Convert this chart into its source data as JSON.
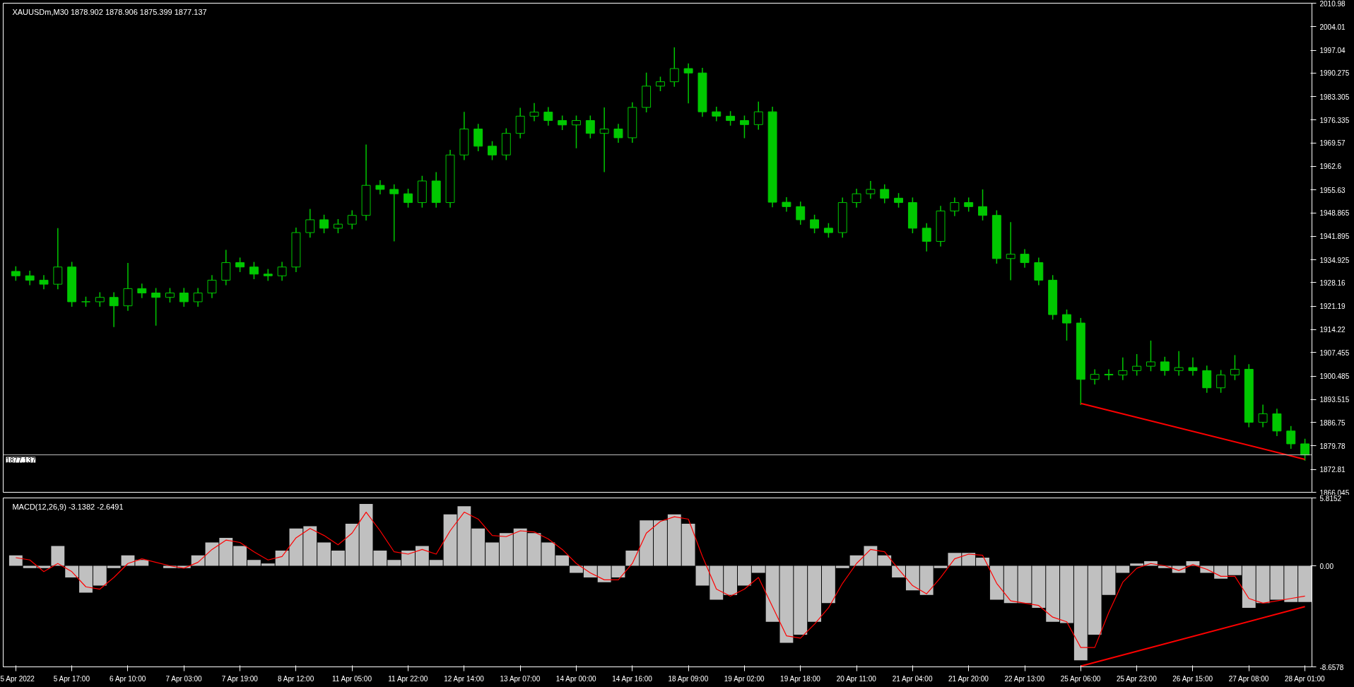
{
  "chart_data": [
    {
      "type": "candlestick",
      "title": "XAUUSDm,M30  1878.902 1878.906 1875.399 1877.137",
      "color": "#00c800",
      "categories": [
        null,
        null,
        null,
        null,
        null,
        null,
        null,
        null,
        null,
        null,
        null,
        null,
        null,
        null,
        null,
        null,
        null,
        null,
        null,
        null,
        null,
        null,
        null,
        null,
        null,
        null,
        null,
        null,
        null,
        null,
        null,
        null,
        null,
        null,
        null,
        null,
        null,
        null,
        null,
        null,
        null,
        null,
        null,
        null,
        null,
        null,
        null,
        null,
        null,
        null,
        null,
        null,
        null,
        null,
        null,
        null,
        null,
        null,
        null,
        null,
        null,
        null,
        null,
        null,
        null,
        null,
        null,
        null,
        null,
        null,
        null,
        null,
        null,
        null,
        null,
        null,
        null,
        null,
        null,
        null,
        null,
        null,
        null,
        null,
        null,
        null,
        null,
        null,
        null,
        null,
        null,
        null,
        null
      ],
      "ohlc": [
        [
          1931.5,
          1933.0,
          1928.7,
          1930.2
        ],
        [
          1930.2,
          1931.7,
          1927.4,
          1928.9
        ],
        [
          1928.9,
          1930.4,
          1926.2,
          1927.7
        ],
        [
          1927.7,
          1944.3,
          1926.2,
          1932.8
        ],
        [
          1932.8,
          1934.3,
          1921.0,
          1922.5
        ],
        [
          1922.5,
          1924.0,
          1921.0,
          1922.5
        ],
        [
          1922.5,
          1925.3,
          1921.0,
          1923.8
        ],
        [
          1923.8,
          1925.3,
          1915.0,
          1921.3
        ],
        [
          1921.3,
          1934.0,
          1919.8,
          1926.4
        ],
        [
          1926.4,
          1927.9,
          1923.6,
          1925.1
        ],
        [
          1925.1,
          1926.6,
          1915.4,
          1923.8
        ],
        [
          1923.8,
          1926.6,
          1922.3,
          1925.1
        ],
        [
          1925.1,
          1926.6,
          1921.0,
          1922.5
        ],
        [
          1922.5,
          1926.6,
          1921.0,
          1925.1
        ],
        [
          1925.1,
          1930.4,
          1923.6,
          1928.9
        ],
        [
          1928.9,
          1937.9,
          1927.4,
          1934.1
        ],
        [
          1934.1,
          1935.6,
          1931.3,
          1932.8
        ],
        [
          1932.8,
          1934.3,
          1929.2,
          1930.7
        ],
        [
          1930.7,
          1932.2,
          1928.7,
          1930.2
        ],
        [
          1930.2,
          1934.3,
          1928.7,
          1932.8
        ],
        [
          1932.8,
          1944.5,
          1931.3,
          1943.0
        ],
        [
          1943.0,
          1950.0,
          1941.5,
          1946.8
        ],
        [
          1946.8,
          1948.3,
          1942.8,
          1944.3
        ],
        [
          1944.3,
          1947.0,
          1942.8,
          1945.5
        ],
        [
          1945.5,
          1949.6,
          1944.0,
          1948.1
        ],
        [
          1948.1,
          1969.1,
          1946.6,
          1957.0
        ],
        [
          1957.0,
          1958.5,
          1954.3,
          1955.8
        ],
        [
          1955.8,
          1957.3,
          1940.4,
          1954.5
        ],
        [
          1954.5,
          1956.0,
          1950.4,
          1951.9
        ],
        [
          1951.9,
          1959.8,
          1950.4,
          1958.3
        ],
        [
          1958.3,
          1960.9,
          1950.4,
          1951.9
        ],
        [
          1951.9,
          1967.5,
          1950.4,
          1966.0
        ],
        [
          1966.0,
          1978.8,
          1964.5,
          1973.7
        ],
        [
          1973.7,
          1975.2,
          1967.1,
          1968.6
        ],
        [
          1968.6,
          1970.1,
          1964.5,
          1966.0
        ],
        [
          1966.0,
          1973.9,
          1964.5,
          1972.4
        ],
        [
          1972.4,
          1980.0,
          1970.9,
          1977.5
        ],
        [
          1977.5,
          1981.4,
          1976.0,
          1978.7
        ],
        [
          1978.7,
          1980.2,
          1974.7,
          1976.2
        ],
        [
          1976.2,
          1977.7,
          1973.4,
          1974.9
        ],
        [
          1974.9,
          1977.7,
          1968.0,
          1976.2
        ],
        [
          1976.2,
          1977.7,
          1970.9,
          1972.4
        ],
        [
          1972.4,
          1980.1,
          1960.9,
          1973.7
        ],
        [
          1973.7,
          1975.2,
          1969.6,
          1971.1
        ],
        [
          1971.1,
          1981.6,
          1969.6,
          1980.1
        ],
        [
          1980.1,
          1990.4,
          1978.6,
          1986.4
        ],
        [
          1986.4,
          1989.2,
          1984.9,
          1987.7
        ],
        [
          1987.7,
          1997.9,
          1986.2,
          1991.6
        ],
        [
          1991.6,
          1993.1,
          1981.3,
          1990.3
        ],
        [
          1990.3,
          1991.8,
          1977.3,
          1978.8
        ],
        [
          1978.8,
          1980.3,
          1976.0,
          1977.5
        ],
        [
          1977.5,
          1979.0,
          1974.7,
          1976.2
        ],
        [
          1976.2,
          1977.7,
          1971.0,
          1975.0
        ],
        [
          1975.0,
          1981.8,
          1973.5,
          1978.8
        ],
        [
          1978.8,
          1980.3,
          1950.5,
          1952.0
        ],
        [
          1952.0,
          1953.5,
          1949.2,
          1950.7
        ],
        [
          1950.7,
          1952.2,
          1945.3,
          1946.8
        ],
        [
          1946.8,
          1948.3,
          1942.8,
          1944.3
        ],
        [
          1944.3,
          1945.8,
          1941.5,
          1943.0
        ],
        [
          1943.0,
          1953.4,
          1941.5,
          1951.9
        ],
        [
          1951.9,
          1956.0,
          1950.4,
          1954.5
        ],
        [
          1954.5,
          1958.3,
          1953.0,
          1955.8
        ],
        [
          1955.8,
          1957.3,
          1951.7,
          1953.2
        ],
        [
          1953.2,
          1954.7,
          1950.4,
          1951.9
        ],
        [
          1951.9,
          1953.4,
          1942.8,
          1944.3
        ],
        [
          1944.3,
          1945.8,
          1937.4,
          1940.4
        ],
        [
          1940.4,
          1950.9,
          1938.9,
          1949.4
        ],
        [
          1949.4,
          1953.4,
          1947.9,
          1951.9
        ],
        [
          1951.9,
          1953.4,
          1949.2,
          1950.7
        ],
        [
          1950.7,
          1955.8,
          1946.6,
          1948.1
        ],
        [
          1948.1,
          1949.6,
          1933.8,
          1935.3
        ],
        [
          1935.3,
          1946.1,
          1928.9,
          1936.6
        ],
        [
          1936.6,
          1938.1,
          1932.6,
          1934.1
        ],
        [
          1934.1,
          1935.6,
          1927.4,
          1928.9
        ],
        [
          1928.9,
          1930.4,
          1917.2,
          1918.7
        ],
        [
          1918.7,
          1920.2,
          1911.0,
          1916.2
        ],
        [
          1916.2,
          1917.7,
          1891.9,
          1899.5
        ],
        [
          1899.5,
          1902.5,
          1898.0,
          1901.0
        ],
        [
          1901.0,
          1902.5,
          1899.3,
          1900.8
        ],
        [
          1900.8,
          1906.0,
          1899.3,
          1902.1
        ],
        [
          1902.1,
          1907.0,
          1900.6,
          1903.4
        ],
        [
          1903.4,
          1911.0,
          1901.9,
          1904.7
        ],
        [
          1904.7,
          1906.2,
          1900.6,
          1902.1
        ],
        [
          1902.1,
          1907.9,
          1900.6,
          1903.0
        ],
        [
          1903.0,
          1906.0,
          1900.6,
          1902.1
        ],
        [
          1902.1,
          1903.6,
          1895.5,
          1897.0
        ],
        [
          1897.0,
          1902.3,
          1895.5,
          1900.8
        ],
        [
          1900.8,
          1906.7,
          1899.3,
          1902.5
        ],
        [
          1902.5,
          1904.0,
          1885.3,
          1886.8
        ],
        [
          1886.8,
          1892.0,
          1885.3,
          1889.3
        ],
        [
          1889.3,
          1890.8,
          1882.7,
          1884.2
        ],
        [
          1884.2,
          1885.7,
          1878.9,
          1880.4
        ],
        [
          1880.4,
          1881.9,
          1875.4,
          1877.1
        ]
      ],
      "series": [
        {
          "type": "line",
          "values": [
            null,
            null,
            null,
            null,
            null,
            null,
            null,
            null,
            null,
            null,
            null,
            null,
            null,
            null,
            null,
            null,
            null,
            null,
            null,
            null,
            null,
            null,
            null,
            null,
            null,
            null,
            null,
            null,
            null,
            null,
            null,
            null,
            null,
            null,
            null,
            null,
            null,
            null,
            null,
            null,
            null,
            null,
            null,
            null,
            null,
            null,
            null,
            null,
            null,
            null,
            null,
            null,
            null,
            null,
            null,
            null,
            null,
            null,
            null,
            null,
            null,
            null,
            null,
            null,
            null,
            null,
            null,
            null,
            null,
            null,
            null,
            null,
            null,
            null,
            null,
            null,
            1892.4,
            null,
            null,
            null,
            null,
            null,
            null,
            null,
            null,
            null,
            null,
            null,
            null,
            null,
            null,
            null,
            1875.8
          ],
          "color": "#ff0000"
        }
      ],
      "ref_lines": [
        {
          "axis": "y",
          "value": 1877.137,
          "label": "1877.137",
          "color": "#c0c0c0"
        }
      ],
      "ylim": [
        1866.045,
        2010.98
      ],
      "yticks": [
        2010.98,
        2004.01,
        1997.04,
        1990.275,
        1983.305,
        1976.335,
        1969.57,
        1962.6,
        1955.63,
        1948.865,
        1941.895,
        1934.925,
        1928.16,
        1921.19,
        1914.22,
        1907.455,
        1900.485,
        1893.515,
        1886.75,
        1879.78,
        1872.81,
        1866.045
      ],
      "tick_labels": "y"
    },
    {
      "type": "bar",
      "title": "MACD(12,26,9) -3.1382 -2.6491",
      "categories": [
        "5 Apr 2022",
        null,
        null,
        null,
        "5 Apr 17:00",
        null,
        null,
        null,
        "6 Apr 10:00",
        null,
        null,
        null,
        "7 Apr 03:00",
        null,
        null,
        null,
        "7 Apr 19:00",
        null,
        null,
        null,
        "8 Apr 12:00",
        null,
        null,
        null,
        "11 Apr 05:00",
        null,
        null,
        null,
        "11 Apr 22:00",
        null,
        null,
        null,
        "12 Apr 14:00",
        null,
        null,
        null,
        "13 Apr 07:00",
        null,
        null,
        null,
        "14 Apr 00:00",
        null,
        null,
        null,
        "14 Apr 16:00",
        null,
        null,
        null,
        "18 Apr 09:00",
        null,
        null,
        null,
        "19 Apr 02:00",
        null,
        null,
        null,
        "19 Apr 18:00",
        null,
        null,
        null,
        "20 Apr 11:00",
        null,
        null,
        null,
        "21 Apr 04:00",
        null,
        null,
        null,
        "21 Apr 20:00",
        null,
        null,
        null,
        "22 Apr 13:00",
        null,
        null,
        null,
        "25 Apr 06:00",
        null,
        null,
        null,
        "25 Apr 23:00",
        null,
        null,
        null,
        "26 Apr 15:00",
        null,
        null,
        null,
        "27 Apr 08:00",
        null,
        null,
        null,
        "28 Apr 01:00"
      ],
      "series": [
        {
          "type": "bar",
          "color": "#c0c0c0",
          "values": [
            0.9,
            -0.2,
            -0.2,
            1.7,
            -1.0,
            -2.3,
            -1.7,
            -0.2,
            0.9,
            0.5,
            0.0,
            -0.2,
            -0.2,
            0.9,
            2.0,
            2.4,
            1.7,
            0.5,
            0.2,
            1.3,
            3.2,
            3.4,
            2.0,
            1.3,
            3.6,
            5.3,
            1.3,
            0.5,
            1.3,
            1.7,
            0.5,
            4.4,
            5.1,
            3.2,
            2.0,
            2.8,
            3.2,
            2.8,
            2.0,
            0.9,
            -0.6,
            -1.0,
            -1.4,
            -1.0,
            1.3,
            3.9,
            3.9,
            4.4,
            3.6,
            -1.7,
            -2.9,
            -2.5,
            -1.7,
            -0.6,
            -4.8,
            -6.6,
            -5.9,
            -4.8,
            -3.2,
            -0.2,
            0.9,
            1.7,
            0.9,
            -1.0,
            -2.1,
            -2.5,
            -0.2,
            1.1,
            1.1,
            0.7,
            -2.9,
            -3.2,
            -3.2,
            -3.6,
            -4.8,
            -4.9,
            -8.1,
            -5.9,
            -2.5,
            -0.6,
            0.2,
            0.4,
            -0.2,
            -0.6,
            0.4,
            -0.6,
            -1.1,
            -0.8,
            -3.6,
            -3.2,
            -2.9,
            -3.1,
            -3.1
          ]
        },
        {
          "type": "line",
          "color": "#ff0000",
          "values": [
            0.7,
            0.5,
            -0.5,
            0.2,
            -0.5,
            -1.8,
            -2.0,
            -1.0,
            0.2,
            0.6,
            0.3,
            0.0,
            -0.2,
            0.3,
            1.4,
            2.2,
            2.0,
            1.2,
            0.5,
            0.8,
            2.4,
            3.2,
            2.6,
            1.8,
            2.8,
            4.6,
            3.0,
            1.2,
            1.0,
            1.4,
            1.0,
            3.0,
            4.6,
            4.0,
            2.6,
            2.5,
            3.0,
            2.9,
            2.3,
            1.4,
            0.2,
            -0.6,
            -1.2,
            -1.2,
            0.2,
            2.8,
            3.8,
            4.2,
            4.0,
            0.8,
            -2.0,
            -2.6,
            -2.0,
            -1.0,
            -3.5,
            -6.0,
            -6.2,
            -5.0,
            -3.6,
            -1.5,
            0.2,
            1.4,
            1.2,
            -0.3,
            -1.7,
            -2.4,
            -1.0,
            0.6,
            1.0,
            0.9,
            -1.5,
            -3.0,
            -3.2,
            -3.4,
            -4.4,
            -4.8,
            -7.0,
            -7.0,
            -4.0,
            -1.4,
            -0.2,
            0.2,
            0.0,
            -0.4,
            0.1,
            -0.3,
            -0.9,
            -0.9,
            -2.8,
            -3.2,
            -3.0,
            -2.8,
            -2.6
          ]
        },
        {
          "type": "line",
          "values": [
            null,
            null,
            null,
            null,
            null,
            null,
            null,
            null,
            null,
            null,
            null,
            null,
            null,
            null,
            null,
            null,
            null,
            null,
            null,
            null,
            null,
            null,
            null,
            null,
            null,
            null,
            null,
            null,
            null,
            null,
            null,
            null,
            null,
            null,
            null,
            null,
            null,
            null,
            null,
            null,
            null,
            null,
            null,
            null,
            null,
            null,
            null,
            null,
            null,
            null,
            null,
            null,
            null,
            null,
            null,
            null,
            null,
            null,
            null,
            null,
            null,
            null,
            null,
            null,
            null,
            null,
            null,
            null,
            null,
            null,
            null,
            null,
            null,
            null,
            null,
            null,
            -8.6,
            null,
            null,
            null,
            null,
            null,
            null,
            null,
            null,
            null,
            null,
            null,
            null,
            null,
            null,
            null,
            -3.5
          ],
          "color": "#ff0000"
        }
      ],
      "ylim": [
        -8.6578,
        5.8152
      ],
      "yticks": [
        5.8152,
        {
          "value": 0,
          "label": "0.00"
        },
        -8.6578
      ]
    }
  ]
}
